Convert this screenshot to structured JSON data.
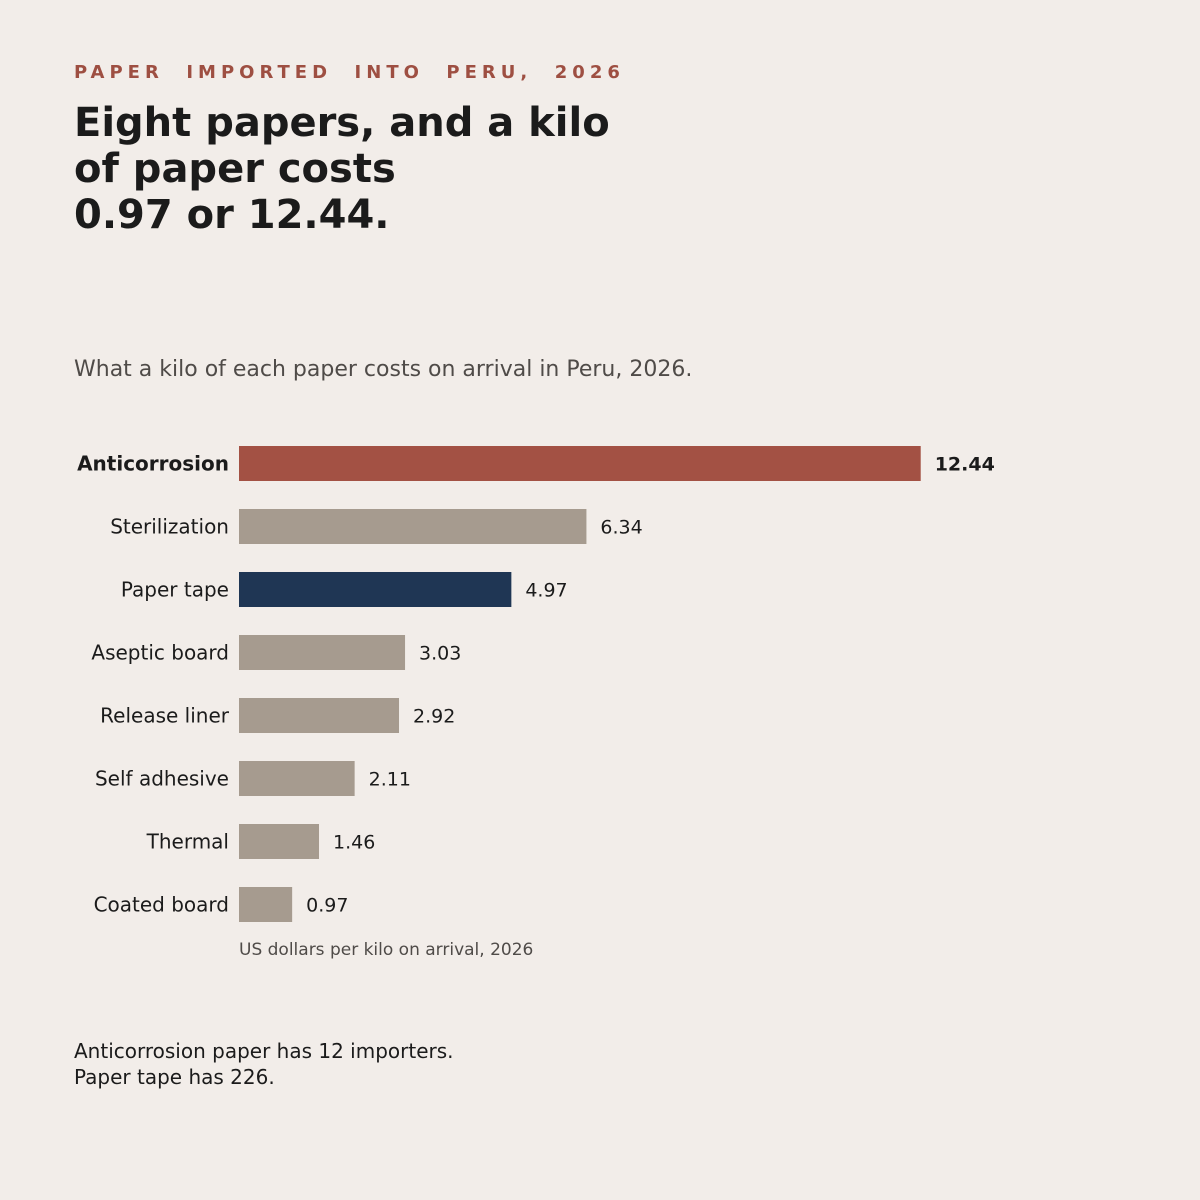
{
  "header": {
    "kicker": "PAPER  IMPORTED  INTO  PERU,  2026",
    "title": "Eight papers, and a kilo\nof paper costs\n0.97 or 12.44.",
    "subtitle": "What a kilo of each paper costs on arrival in Peru, 2026."
  },
  "chart_data": {
    "type": "bar",
    "orientation": "horizontal",
    "categories": [
      "Anticorrosion",
      "Sterilization",
      "Paper tape",
      "Aseptic board",
      "Release liner",
      "Self adhesive",
      "Thermal",
      "Coated board"
    ],
    "values": [
      12.44,
      6.34,
      4.97,
      3.03,
      2.92,
      2.11,
      1.46,
      0.97
    ],
    "value_labels": [
      "12.44",
      "6.34",
      "4.97",
      "3.03",
      "2.92",
      "2.11",
      "1.46",
      "0.97"
    ],
    "colors": [
      "#a35144",
      "#a69b8f",
      "#1f3654",
      "#a69b8f",
      "#a69b8f",
      "#a69b8f",
      "#a69b8f",
      "#a69b8f"
    ],
    "bold": [
      true,
      false,
      false,
      false,
      false,
      false,
      false,
      false
    ],
    "xlabel": "US dollars per kilo on arrival, 2026",
    "grid": false
  },
  "notes": {
    "line1": "Anticorrosion paper has 12 importers.",
    "line2": "Paper tape has 226."
  }
}
